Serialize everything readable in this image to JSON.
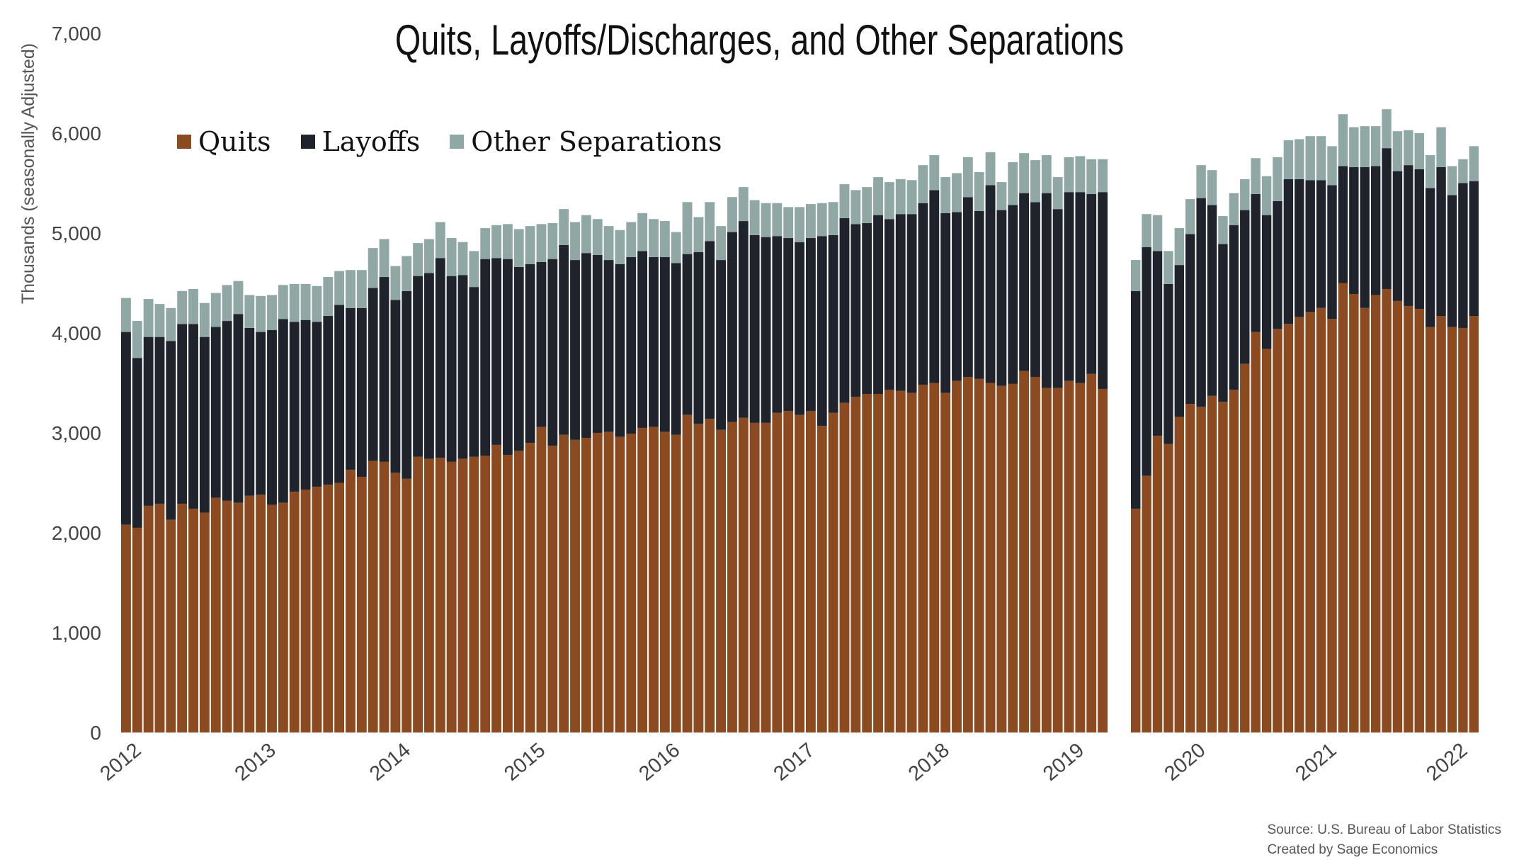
{
  "chart_data": {
    "type": "bar",
    "stacked": true,
    "title": "Quits, Layoffs/Discharges, and Other Separations",
    "ylabel": "Thousands (seasonally Adjusted)",
    "ylim": [
      0,
      7000
    ],
    "yticks": [
      "0",
      "1,000",
      "2,000",
      "3,000",
      "4,000",
      "5,000",
      "6,000",
      "7,000"
    ],
    "ytick_values": [
      0,
      1000,
      2000,
      3000,
      4000,
      5000,
      6000,
      7000
    ],
    "grid": false,
    "legend_position": "top-left",
    "colors": {
      "quits": "#8b4a1f",
      "layoffs": "#1f232b",
      "other": "#8fa8a5"
    },
    "segments": [
      {
        "xtick_labels": [
          "2012",
          "2013",
          "2014",
          "2015",
          "2016",
          "2017",
          "2018",
          "2019"
        ],
        "xtick_months": [
          0,
          12,
          24,
          36,
          48,
          60,
          72,
          84
        ],
        "quits": [
          2080,
          2050,
          2270,
          2290,
          2130,
          2290,
          2240,
          2200,
          2350,
          2320,
          2300,
          2370,
          2380,
          2280,
          2300,
          2410,
          2430,
          2460,
          2480,
          2500,
          2630,
          2560,
          2720,
          2710,
          2600,
          2540,
          2760,
          2740,
          2750,
          2710,
          2740,
          2760,
          2770,
          2880,
          2780,
          2820,
          2900,
          3060,
          2870,
          2980,
          2930,
          2950,
          3000,
          3010,
          2960,
          2990,
          3050,
          3060,
          3010,
          2980,
          3180,
          3090,
          3140,
          3030,
          3110,
          3150,
          3100,
          3100,
          3200,
          3220,
          3180,
          3220,
          3070,
          3200,
          3300,
          3360,
          3390,
          3390,
          3430,
          3420,
          3400,
          3480,
          3500,
          3400,
          3520,
          3560,
          3540,
          3500,
          3470,
          3490,
          3620,
          3560,
          3450,
          3450,
          3520,
          3500,
          3590,
          3440
        ],
        "layoffs": [
          1930,
          1700,
          1690,
          1670,
          1790,
          1800,
          1850,
          1760,
          1710,
          1800,
          1890,
          1680,
          1630,
          1750,
          1840,
          1700,
          1700,
          1650,
          1690,
          1780,
          1620,
          1690,
          1730,
          1850,
          1730,
          1880,
          1810,
          1860,
          2000,
          1860,
          1840,
          1700,
          1970,
          1870,
          1960,
          1840,
          1790,
          1650,
          1870,
          1900,
          1800,
          1850,
          1780,
          1720,
          1730,
          1770,
          1770,
          1700,
          1750,
          1720,
          1610,
          1720,
          1780,
          1700,
          1900,
          1970,
          1880,
          1860,
          1770,
          1730,
          1730,
          1730,
          1900,
          1780,
          1850,
          1730,
          1710,
          1790,
          1710,
          1770,
          1790,
          1820,
          1930,
          1800,
          1690,
          1800,
          1680,
          1980,
          1760,
          1790,
          1780,
          1750,
          1950,
          1790,
          1890,
          1910,
          1800,
          1970
        ],
        "other": [
          340,
          370,
          380,
          330,
          330,
          330,
          350,
          340,
          340,
          360,
          330,
          330,
          360,
          350,
          340,
          380,
          360,
          360,
          390,
          340,
          380,
          380,
          400,
          380,
          340,
          350,
          330,
          340,
          360,
          380,
          330,
          360,
          310,
          330,
          350,
          380,
          380,
          380,
          360,
          360,
          380,
          380,
          360,
          340,
          340,
          350,
          380,
          380,
          360,
          310,
          520,
          350,
          390,
          340,
          350,
          340,
          350,
          340,
          330,
          310,
          350,
          340,
          330,
          330,
          340,
          340,
          360,
          380,
          370,
          350,
          340,
          380,
          350,
          360,
          390,
          400,
          390,
          330,
          280,
          430,
          400,
          420,
          380,
          320,
          350,
          360,
          350,
          330
        ]
      },
      {
        "xtick_labels": [
          "2020",
          "2021",
          "2022"
        ],
        "xtick_months": [
          5,
          17,
          29
        ],
        "quits": [
          2240,
          2570,
          2970,
          2890,
          3160,
          3290,
          3260,
          3370,
          3310,
          3430,
          3690,
          4010,
          3840,
          4040,
          4090,
          4160,
          4210,
          4250,
          4140,
          4500,
          4390,
          4250,
          4380,
          4440,
          4320,
          4270,
          4240,
          4060,
          4170,
          4060,
          4050,
          4170
        ],
        "layoffs": [
          2180,
          2290,
          1850,
          1600,
          1520,
          1700,
          2090,
          1910,
          1580,
          1650,
          1540,
          1380,
          1340,
          1280,
          1450,
          1380,
          1320,
          1280,
          1340,
          1170,
          1270,
          1410,
          1290,
          1410,
          1300,
          1410,
          1400,
          1390,
          1490,
          1320,
          1450,
          1350
        ],
        "other": [
          310,
          330,
          360,
          330,
          370,
          350,
          330,
          350,
          280,
          320,
          310,
          360,
          390,
          440,
          390,
          400,
          440,
          440,
          390,
          520,
          400,
          410,
          400,
          390,
          400,
          350,
          360,
          330,
          400,
          290,
          240,
          350
        ]
      }
    ],
    "source_line1": "Source: U.S. Bureau of Labor Statistics",
    "source_line2": "Created by Sage Economics"
  },
  "legend": [
    {
      "label": "Quits",
      "key": "quits"
    },
    {
      "label": "Layoffs",
      "key": "layoffs"
    },
    {
      "label": "Other Separations",
      "key": "other"
    }
  ]
}
